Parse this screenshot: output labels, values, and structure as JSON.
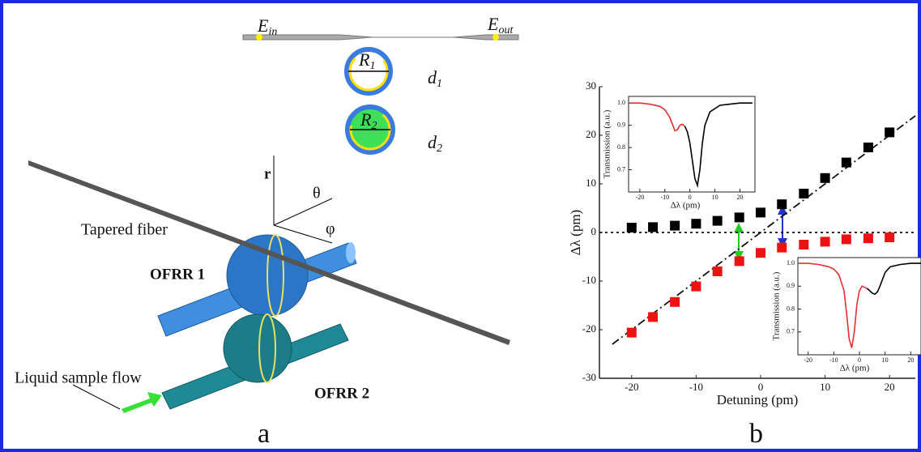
{
  "diagram": {
    "panel_a": "a",
    "e_in": {
      "main": "E",
      "sub": "in"
    },
    "e_out": {
      "main": "E",
      "sub": "out"
    },
    "r1": {
      "main": "R",
      "sub": "1"
    },
    "r2": {
      "main": "R",
      "sub": "2"
    },
    "d1": {
      "main": "d",
      "sub": "1"
    },
    "d2": {
      "main": "d",
      "sub": "2"
    },
    "axis_r": "r",
    "axis_theta": "θ",
    "axis_phi": "φ",
    "tapered_fiber": "Tapered fiber",
    "ofrr1": "OFRR 1",
    "ofrr2": "OFRR 2",
    "liquid_flow": "Liquid sample flow"
  },
  "chart_data": [
    {
      "type": "scatter",
      "panel_label": "b",
      "x_label": "Detuning (pm)",
      "y_label": "Δλ (pm)",
      "xlim": [
        -25,
        24
      ],
      "ylim": [
        -30,
        30
      ],
      "xticks": [
        -20,
        -10,
        0,
        10,
        20
      ],
      "yticks": [
        -30,
        -20,
        -10,
        0,
        10,
        20,
        30
      ],
      "series": [
        {
          "color": "#000000",
          "x": [
            -20,
            -16.7,
            -13.3,
            -10,
            -6.7,
            -3.3,
            0,
            3.3,
            6.7,
            10,
            13.3,
            16.7,
            20
          ],
          "values": [
            1.0,
            1.1,
            1.4,
            1.8,
            2.4,
            3.1,
            4.1,
            5.8,
            8.0,
            11.2,
            14.4,
            17.5,
            20.6
          ]
        },
        {
          "color": "#ee1111",
          "x": [
            -20,
            -16.7,
            -13.3,
            -10,
            -6.7,
            -3.3,
            0,
            3.3,
            6.7,
            10,
            13.3,
            16.7,
            20
          ],
          "values": [
            -20.6,
            -17.4,
            -14.3,
            -11.1,
            -8.0,
            -5.9,
            -4.2,
            -3.1,
            -2.5,
            -1.9,
            -1.4,
            -1.2,
            -1.0
          ]
        }
      ],
      "reference_lines": [
        {
          "style": "dash-dot",
          "x": [
            -23,
            24
          ],
          "values": [
            -23,
            24
          ]
        },
        {
          "style": "dotted",
          "x": [
            -25,
            24
          ],
          "values": [
            0,
            0
          ]
        }
      ]
    },
    {
      "type": "line",
      "x_label": "Δλ (pm)",
      "y_label": "Transmission (a.u.)",
      "xlim": [
        -24.5,
        26
      ],
      "ylim": [
        0.6,
        1.03
      ],
      "xticks": [
        -20,
        -10,
        0,
        10,
        20
      ],
      "yticks": [
        0.7,
        0.8,
        0.9,
        {
          "value": 1,
          "label": "1.0"
        }
      ],
      "series": [
        {
          "color": "#e03030",
          "x": [
            -24,
            -20,
            -16,
            -12,
            -10,
            -8,
            -7,
            -6,
            -5,
            -4,
            -3,
            -2
          ],
          "values": [
            1.0,
            1.0,
            0.995,
            0.985,
            0.97,
            0.935,
            0.905,
            0.875,
            0.88,
            0.9,
            0.905,
            0.895
          ]
        },
        {
          "color": "#000000",
          "x": [
            -2,
            -1,
            0,
            1,
            2,
            3,
            4,
            5,
            6,
            8,
            12,
            16,
            20,
            25
          ],
          "values": [
            0.895,
            0.87,
            0.82,
            0.74,
            0.66,
            0.63,
            0.7,
            0.82,
            0.9,
            0.96,
            0.99,
            0.995,
            1.0,
            1.0
          ]
        }
      ]
    },
    {
      "type": "line",
      "x_label": "Δλ (pm)",
      "y_label": "Transmission (a.u.)",
      "xlim": [
        -24,
        24
      ],
      "ylim": [
        0.6,
        1.025
      ],
      "xticks": [
        -20,
        -10,
        0,
        10,
        20
      ],
      "yticks": [
        0.7,
        0.8,
        0.9,
        {
          "value": 1,
          "label": "1.0"
        }
      ],
      "series": [
        {
          "color": "#e03030",
          "x": [
            -24,
            -20,
            -16,
            -12,
            -10,
            -8,
            -6,
            -5,
            -4,
            -3,
            -2,
            -1,
            0,
            1,
            2,
            3
          ],
          "values": [
            1.0,
            1.0,
            0.995,
            0.985,
            0.975,
            0.95,
            0.88,
            0.78,
            0.67,
            0.63,
            0.7,
            0.82,
            0.88,
            0.9,
            0.895,
            0.89
          ]
        },
        {
          "color": "#000000",
          "x": [
            3,
            4,
            5,
            6,
            7,
            8,
            10,
            12,
            16,
            20,
            24
          ],
          "values": [
            0.89,
            0.88,
            0.87,
            0.865,
            0.875,
            0.9,
            0.96,
            0.985,
            0.995,
            1.0,
            1.0
          ]
        }
      ]
    }
  ]
}
